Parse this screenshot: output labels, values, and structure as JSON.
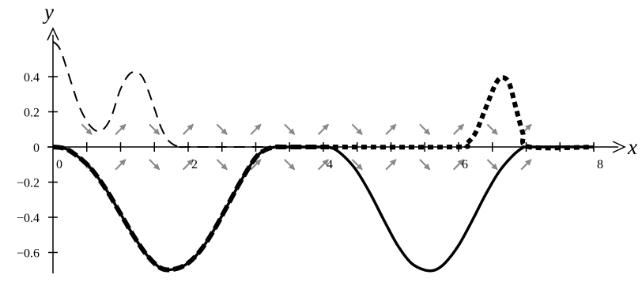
{
  "chart_data": {
    "type": "line",
    "title": "",
    "xlabel": "x",
    "ylabel": "y",
    "xlim": [
      -0.1,
      8.2
    ],
    "ylim": [
      -0.72,
      0.65
    ],
    "grid": false,
    "x_ticks": [
      0,
      2,
      4,
      6,
      8
    ],
    "x_minor_ticks": [
      0.5,
      1,
      1.5,
      2,
      2.5,
      3,
      3.5,
      4,
      4.5,
      5,
      5.5,
      6,
      6.5,
      7,
      7.5,
      8
    ],
    "x_tick_labels": [
      "0",
      "2",
      "4",
      "6",
      "8"
    ],
    "y_ticks": [
      0.4,
      0.2,
      0,
      -0.2,
      -0.4,
      -0.6
    ],
    "y_tick_labels": [
      "0.4",
      "0.2",
      "0",
      "−0.2",
      "−0.4",
      "−0.6"
    ],
    "series": [
      {
        "style": "solid",
        "color": "#000000",
        "x": [
          0,
          0.1,
          0.2,
          0.3,
          0.45,
          0.6,
          0.8,
          1.0,
          1.2,
          1.4,
          1.6,
          1.8,
          2.0,
          2.2,
          2.4,
          2.6,
          2.8,
          3.0,
          3.15,
          3.3,
          3.4,
          4.0,
          4.1,
          4.2,
          4.35,
          4.5,
          4.7,
          4.9,
          5.1,
          5.3,
          5.5,
          5.65,
          5.8,
          6.0,
          6.2,
          6.4,
          6.6,
          6.8,
          6.95,
          7.05,
          8.0
        ],
        "y": [
          0,
          -0.003,
          -0.012,
          -0.035,
          -0.08,
          -0.14,
          -0.25,
          -0.38,
          -0.51,
          -0.62,
          -0.69,
          -0.695,
          -0.66,
          -0.58,
          -0.46,
          -0.32,
          -0.18,
          -0.06,
          -0.015,
          0,
          0,
          0,
          -0.003,
          -0.02,
          -0.07,
          -0.14,
          -0.27,
          -0.42,
          -0.56,
          -0.66,
          -0.7,
          -0.7,
          -0.66,
          -0.56,
          -0.42,
          -0.27,
          -0.14,
          -0.05,
          -0.005,
          0,
          0
        ]
      },
      {
        "style": "thick-dashed",
        "color": "#000000",
        "x": [
          0,
          0.1,
          0.2,
          0.3,
          0.45,
          0.6,
          0.8,
          1.0,
          1.2,
          1.4,
          1.6,
          1.8,
          2.0,
          2.2,
          2.4,
          2.6,
          2.8,
          3.0,
          3.15,
          3.3,
          3.4,
          4.0
        ],
        "y": [
          0,
          -0.003,
          -0.012,
          -0.035,
          -0.08,
          -0.14,
          -0.25,
          -0.38,
          -0.51,
          -0.62,
          -0.69,
          -0.695,
          -0.66,
          -0.58,
          -0.46,
          -0.32,
          -0.18,
          -0.06,
          -0.015,
          0,
          0,
          0
        ]
      },
      {
        "style": "dashed",
        "color": "#000000",
        "x": [
          0,
          0.1,
          0.2,
          0.3,
          0.4,
          0.55,
          0.7,
          0.85,
          1.0,
          1.15,
          1.3,
          1.4,
          1.5,
          1.6,
          1.7,
          1.8,
          1.9,
          2.0,
          3.4
        ],
        "y": [
          0.6,
          0.56,
          0.45,
          0.33,
          0.22,
          0.12,
          0.09,
          0.16,
          0.33,
          0.42,
          0.41,
          0.33,
          0.22,
          0.11,
          0.04,
          0.01,
          0,
          0,
          0
        ]
      },
      {
        "style": "dotted-bold",
        "color": "#000000",
        "x": [
          4.0,
          5.95,
          6.1,
          6.25,
          6.4,
          6.55,
          6.65,
          6.75,
          6.85,
          6.95,
          7.05,
          8.0
        ],
        "y": [
          0,
          0,
          0.015,
          0.08,
          0.22,
          0.36,
          0.395,
          0.36,
          0.22,
          0.08,
          0,
          0
        ]
      }
    ],
    "direction_field": {
      "color": "#888888",
      "arrows": [
        {
          "x": 0.5,
          "y": 0.1,
          "dx": 1,
          "dy": -1
        },
        {
          "x": 1.0,
          "y": 0.1,
          "dx": 1,
          "dy": 1
        },
        {
          "x": 1.5,
          "y": 0.1,
          "dx": 1,
          "dy": -1
        },
        {
          "x": 2.0,
          "y": 0.1,
          "dx": 1,
          "dy": 1
        },
        {
          "x": 2.5,
          "y": 0.1,
          "dx": 1,
          "dy": -1
        },
        {
          "x": 3.0,
          "y": 0.1,
          "dx": 1,
          "dy": 1
        },
        {
          "x": 3.5,
          "y": 0.1,
          "dx": 1,
          "dy": -1
        },
        {
          "x": 4.0,
          "y": 0.1,
          "dx": 1,
          "dy": 1
        },
        {
          "x": 4.5,
          "y": 0.1,
          "dx": 1,
          "dy": -1
        },
        {
          "x": 5.0,
          "y": 0.1,
          "dx": 1,
          "dy": 1
        },
        {
          "x": 5.5,
          "y": 0.1,
          "dx": 1,
          "dy": -1
        },
        {
          "x": 6.0,
          "y": 0.1,
          "dx": 1,
          "dy": 1
        },
        {
          "x": 6.5,
          "y": 0.1,
          "dx": 1,
          "dy": -1
        },
        {
          "x": 7.0,
          "y": 0.1,
          "dx": 1,
          "dy": 1
        },
        {
          "x": 0.5,
          "y": -0.1,
          "dx": 1,
          "dy": -1
        },
        {
          "x": 1.0,
          "y": -0.1,
          "dx": 1,
          "dy": 1
        },
        {
          "x": 1.5,
          "y": -0.1,
          "dx": 1,
          "dy": -1
        },
        {
          "x": 2.0,
          "y": -0.1,
          "dx": 1,
          "dy": 1
        },
        {
          "x": 2.5,
          "y": -0.1,
          "dx": 1,
          "dy": -1
        },
        {
          "x": 3.0,
          "y": -0.1,
          "dx": 1,
          "dy": 1
        },
        {
          "x": 3.5,
          "y": -0.1,
          "dx": 1,
          "dy": -1
        },
        {
          "x": 4.0,
          "y": -0.1,
          "dx": 1,
          "dy": 1
        },
        {
          "x": 4.5,
          "y": -0.1,
          "dx": 1,
          "dy": -1
        },
        {
          "x": 5.0,
          "y": -0.1,
          "dx": 1,
          "dy": 1
        },
        {
          "x": 5.5,
          "y": -0.1,
          "dx": 1,
          "dy": -1
        },
        {
          "x": 6.0,
          "y": -0.1,
          "dx": 1,
          "dy": 1
        },
        {
          "x": 6.5,
          "y": -0.1,
          "dx": 1,
          "dy": -1
        },
        {
          "x": 7.0,
          "y": -0.1,
          "dx": 1,
          "dy": 1
        }
      ]
    }
  }
}
